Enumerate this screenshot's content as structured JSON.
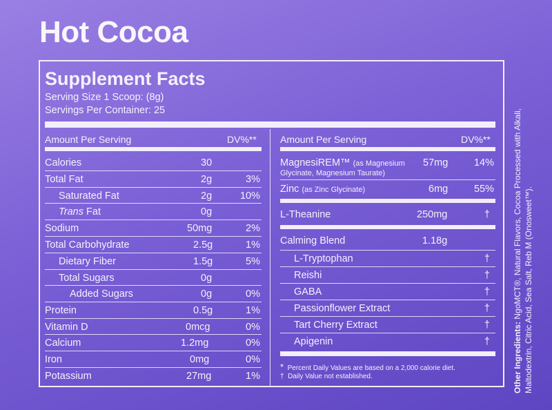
{
  "title": "Hot Cocoa",
  "facts": {
    "heading": "Supplement Facts",
    "serving_size": "Serving Size 1 Scoop: (8g)",
    "servings_per_container": "Servings Per Container: 25",
    "amount_label": "Amount Per Serving",
    "dv_label": "DV%**"
  },
  "left_rows": [
    {
      "name": "Calories",
      "amount": "30",
      "dv": ""
    },
    {
      "name": "Total Fat",
      "amount": "2g",
      "dv": "3%"
    },
    {
      "name": "Saturated Fat",
      "amount": "2g",
      "dv": "10%"
    },
    {
      "name": "Trans",
      "name_suffix": " Fat",
      "amount": "0g",
      "dv": ""
    },
    {
      "name": "Sodium",
      "amount": "50mg",
      "dv": "2%"
    },
    {
      "name": "Total Carbohydrate",
      "amount": "2.5g",
      "dv": "1%"
    },
    {
      "name": "Dietary Fiber",
      "amount": "1.5g",
      "dv": "5%"
    },
    {
      "name": "Total Sugars",
      "amount": "0g",
      "dv": ""
    },
    {
      "name": "Added Sugars",
      "amount": "0g",
      "dv": "0%"
    },
    {
      "name": "Protein",
      "amount": "0.5g",
      "dv": "1%"
    },
    {
      "name": "Vitamin D",
      "amount": "0mcg",
      "dv": "0%"
    },
    {
      "name": "Calcium",
      "amount": "1.2mg",
      "dv": "0%"
    },
    {
      "name": "Iron",
      "amount": "0mg",
      "dv": "0%"
    },
    {
      "name": "Potassium",
      "amount": "27mg",
      "dv": "1%"
    }
  ],
  "right": {
    "magnesium": {
      "name": "MagnesiREM™",
      "detail_1": "(as Magnesium",
      "detail_2": "Glycinate, Magnesium Taurate)",
      "amount": "57mg",
      "dv": "14%"
    },
    "zinc": {
      "name": "Zinc",
      "detail": "(as Zinc Glycinate)",
      "amount": "6mg",
      "dv": "55%"
    },
    "theanine": {
      "name": "L-Theanine",
      "amount": "250mg",
      "dv": "†"
    },
    "blend": {
      "name": "Calming Blend",
      "amount": "1.18g"
    },
    "blend_items": [
      {
        "name": "L-Tryptophan",
        "dv": "†"
      },
      {
        "name": "Reishi",
        "dv": "†"
      },
      {
        "name": "GABA",
        "dv": "†"
      },
      {
        "name": "Passionflower Extract",
        "dv": "†"
      },
      {
        "name": "Tart Cherry Extract",
        "dv": "†"
      },
      {
        "name": "Apigenin",
        "dv": "†"
      }
    ]
  },
  "footnotes": {
    "star_symbol": "*",
    "star_text": "Percent Daily Values are based on a 2,000 calorie diet.",
    "dagger_symbol": "†",
    "dagger_text": "Daily Value not established."
  },
  "other_ingredients": {
    "label": "Other Ingredients:",
    "text": " NgoMCT®, Natural Flavors, Cocoa Processed with Alkali, Maltodextrin, Citric Acid, Sea Salt, Reb M (Onosweet™)."
  }
}
